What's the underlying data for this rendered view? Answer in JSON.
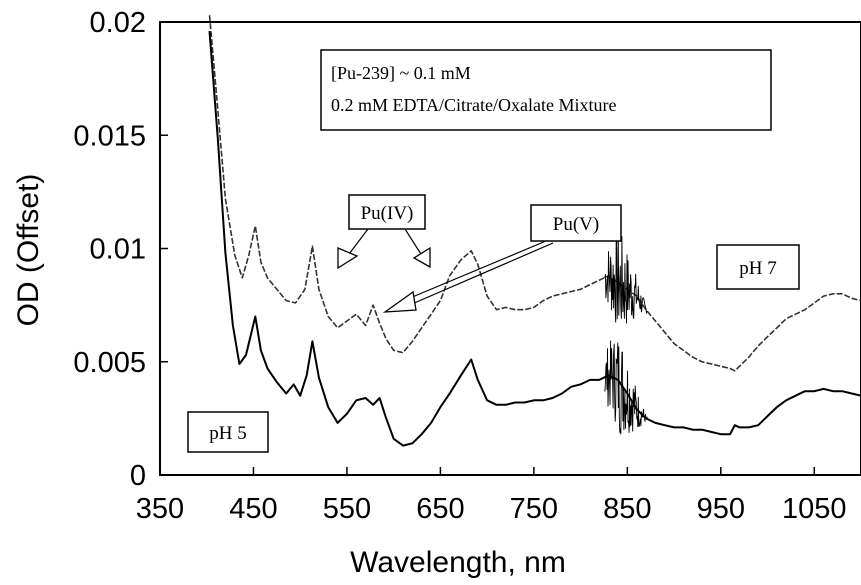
{
  "chart_data": {
    "type": "line",
    "xlabel": "Wavelength, nm",
    "ylabel": "OD (Offset)",
    "xlim": [
      350,
      1100
    ],
    "ylim": [
      0,
      0.02
    ],
    "xticks": [
      "350",
      "450",
      "550",
      "650",
      "750",
      "850",
      "950",
      "1050"
    ],
    "yticks": [
      "0",
      "0.005",
      "0.01",
      "0.015",
      "0.02"
    ],
    "grid": false,
    "legend_box": {
      "line1": "[Pu-239] ~ 0.1 mM",
      "line2": "0.2 mM EDTA/Citrate/Oxalate Mixture"
    },
    "annotations": {
      "pu_iv": "Pu(IV)",
      "pu_v": "Pu(V)",
      "ph7": "pH 7",
      "ph5": "pH 5"
    },
    "series": [
      {
        "name": "pH 7",
        "x": [
          403,
          410,
          420,
          430,
          438,
          445,
          452,
          458,
          465,
          475,
          485,
          495,
          505,
          513,
          520,
          530,
          540,
          550,
          560,
          570,
          578,
          585,
          592,
          600,
          610,
          620,
          630,
          640,
          650,
          660,
          672,
          683,
          690,
          700,
          710,
          720,
          730,
          740,
          750,
          760,
          770,
          780,
          790,
          800,
          810,
          820,
          830,
          840,
          850,
          860,
          870,
          880,
          890,
          900,
          910,
          920,
          930,
          940,
          950,
          960,
          965,
          970,
          980,
          990,
          1000,
          1010,
          1020,
          1030,
          1040,
          1050,
          1060,
          1070,
          1080,
          1090,
          1100
        ],
        "y": [
          0.0203,
          0.017,
          0.0122,
          0.0097,
          0.0087,
          0.0097,
          0.011,
          0.0094,
          0.0087,
          0.0082,
          0.0077,
          0.0076,
          0.0082,
          0.0101,
          0.0082,
          0.007,
          0.0065,
          0.0068,
          0.0071,
          0.0066,
          0.0075,
          0.0067,
          0.006,
          0.0055,
          0.0054,
          0.0059,
          0.0065,
          0.0071,
          0.0077,
          0.0088,
          0.0095,
          0.0099,
          0.0093,
          0.0079,
          0.0073,
          0.0074,
          0.0073,
          0.0073,
          0.0074,
          0.0077,
          0.0079,
          0.008,
          0.0081,
          0.0082,
          0.0084,
          0.0086,
          0.0088,
          0.0085,
          0.0082,
          0.0079,
          0.0073,
          0.0068,
          0.0063,
          0.0058,
          0.0055,
          0.0052,
          0.005,
          0.0049,
          0.0048,
          0.0047,
          0.0046,
          0.0048,
          0.0052,
          0.0057,
          0.0061,
          0.0065,
          0.0069,
          0.0071,
          0.0073,
          0.0076,
          0.0079,
          0.008,
          0.008,
          0.0078,
          0.0077
        ]
      },
      {
        "name": "pH 5",
        "x": [
          403,
          412,
          420,
          428,
          435,
          442,
          452,
          458,
          465,
          475,
          485,
          493,
          500,
          507,
          513,
          520,
          530,
          540,
          550,
          560,
          570,
          578,
          585,
          592,
          600,
          610,
          620,
          630,
          640,
          650,
          660,
          672,
          683,
          690,
          700,
          710,
          720,
          730,
          740,
          750,
          760,
          770,
          780,
          790,
          800,
          810,
          820,
          830,
          840,
          850,
          860,
          870,
          880,
          890,
          900,
          910,
          920,
          930,
          940,
          950,
          960,
          965,
          970,
          980,
          990,
          1000,
          1010,
          1020,
          1030,
          1040,
          1050,
          1060,
          1070,
          1080,
          1090,
          1100
        ],
        "y": [
          0.0196,
          0.0148,
          0.0098,
          0.0066,
          0.0049,
          0.0053,
          0.007,
          0.0055,
          0.0047,
          0.0041,
          0.0036,
          0.004,
          0.0035,
          0.0044,
          0.0059,
          0.0043,
          0.003,
          0.0023,
          0.0027,
          0.0033,
          0.0034,
          0.0031,
          0.0034,
          0.0025,
          0.0016,
          0.0013,
          0.0014,
          0.0018,
          0.0023,
          0.003,
          0.0036,
          0.0044,
          0.0051,
          0.0042,
          0.0033,
          0.0031,
          0.0031,
          0.0032,
          0.0032,
          0.0033,
          0.0033,
          0.0034,
          0.0036,
          0.0039,
          0.004,
          0.0042,
          0.0042,
          0.0044,
          0.0042,
          0.0036,
          0.0029,
          0.0025,
          0.0023,
          0.0022,
          0.0021,
          0.0021,
          0.002,
          0.002,
          0.0019,
          0.0018,
          0.0018,
          0.0022,
          0.0021,
          0.0021,
          0.0022,
          0.0026,
          0.003,
          0.0033,
          0.0035,
          0.0037,
          0.0037,
          0.0038,
          0.0037,
          0.0037,
          0.0036,
          0.0035
        ]
      }
    ]
  }
}
